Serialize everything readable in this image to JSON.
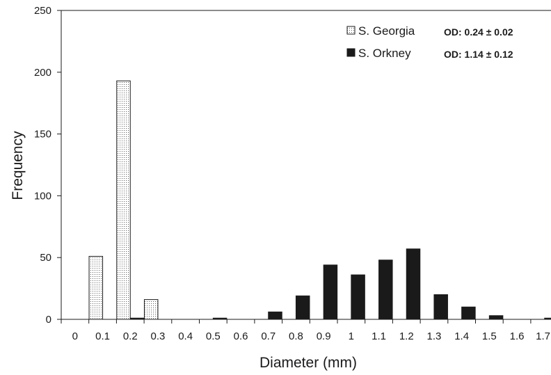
{
  "chart_data": {
    "type": "bar",
    "xlabel": "Diameter (mm)",
    "ylabel": "Frequency",
    "ylim": [
      0,
      250
    ],
    "yticks": [
      0,
      50,
      100,
      150,
      200,
      250
    ],
    "categories": [
      "0",
      "0.1",
      "0.2",
      "0.3",
      "0.4",
      "0.5",
      "0.6",
      "0.7",
      "0.8",
      "0.9",
      "1",
      "1.1",
      "1.2",
      "1.3",
      "1.4",
      "1.5",
      "1.6",
      "1.7"
    ],
    "grid": false,
    "legend_position": "top-right",
    "series": [
      {
        "name": "S. Georgia",
        "fill": "dotted",
        "values": [
          0,
          51,
          193,
          16,
          0,
          0,
          0,
          0,
          0,
          0,
          0,
          0,
          0,
          0,
          0,
          0,
          0,
          0
        ]
      },
      {
        "name": "S. Orkney",
        "fill": "#1a1a1a",
        "values": [
          0,
          0,
          1,
          0,
          0,
          1,
          0,
          6,
          19,
          44,
          36,
          48,
          57,
          20,
          10,
          3,
          0,
          1
        ]
      }
    ],
    "annotations": [
      "OD: 0.24 ± 0.02",
      "OD: 1.14 ± 0.12"
    ]
  }
}
